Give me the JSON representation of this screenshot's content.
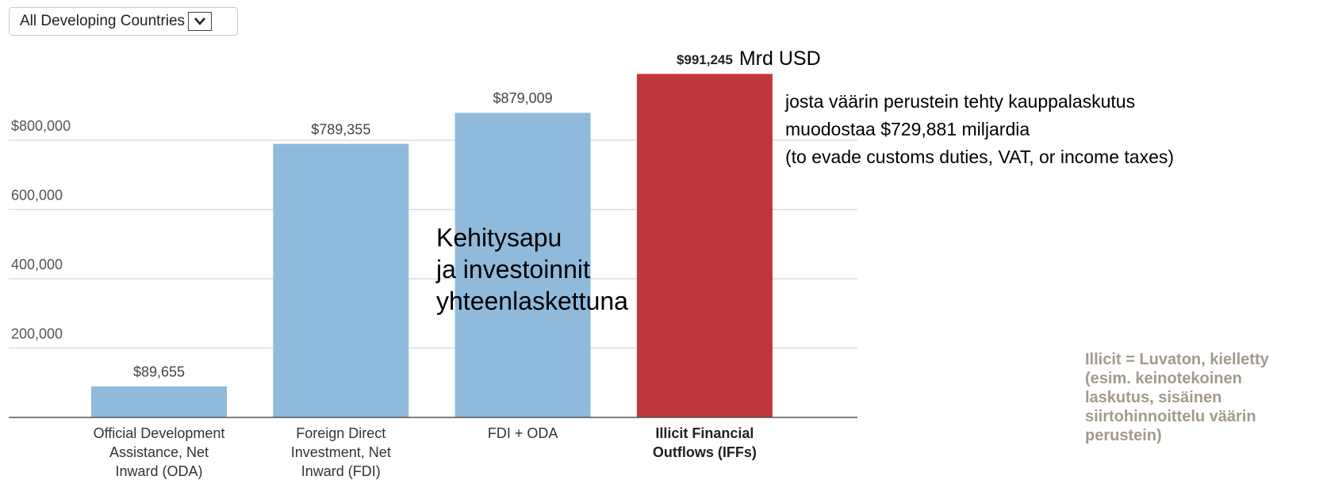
{
  "dropdown": {
    "label": "All Developing Countries"
  },
  "chart_data": {
    "type": "bar",
    "categories": [
      "Official Development Assistance, Net Inward (ODA)",
      "Foreign Direct Investment, Net Inward (FDI)",
      "FDI + ODA",
      "Illicit Financial Outflows (IFFs)"
    ],
    "values": [
      89655,
      789355,
      879009,
      991245
    ],
    "value_labels": [
      "$89,655",
      "$789,355",
      "$879,009",
      "$991,245"
    ],
    "colors": [
      "#8fbadb",
      "#8fbadb",
      "#8fbadb",
      "#c0373b"
    ],
    "highlight": 3,
    "ylim": [
      0,
      1000000
    ],
    "yticks": [
      {
        "value": 200000,
        "label": "200,000"
      },
      {
        "value": 400000,
        "label": "400,000"
      },
      {
        "value": 600000,
        "label": "600,000"
      },
      {
        "value": 800000,
        "label": "$800,000"
      }
    ],
    "grid": true,
    "unit_annotation": "Mrd USD",
    "annotation_center": [
      "Kehitysapu",
      "ja investoinnit",
      "yhteenlaskettuna"
    ],
    "annotation_right": [
      "josta väärin perustein tehty kauppalaskutus",
      "muodostaa $729,881 miljardia",
      "(to evade customs duties, VAT, or income taxes)"
    ],
    "note": [
      "Illicit = Luvaton, kielletty",
      "(esim. keinotekoinen",
      "laskutus, sisäinen",
      "siirtohinnoittelu väärin",
      "perustein)"
    ]
  }
}
